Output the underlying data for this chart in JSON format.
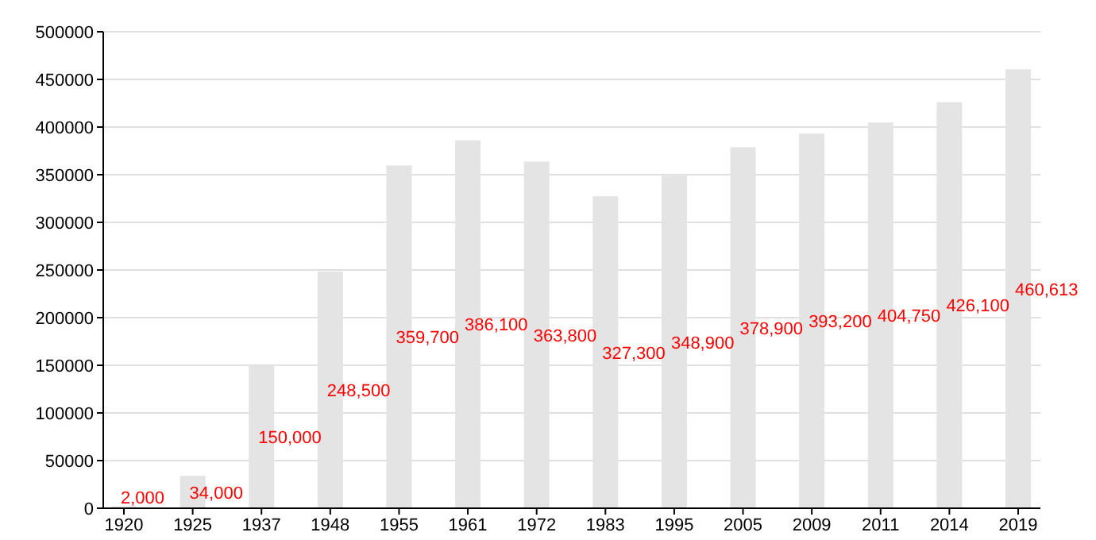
{
  "chart_data": {
    "type": "bar",
    "categories": [
      "1920",
      "1925",
      "1937",
      "1948",
      "1955",
      "1961",
      "1972",
      "1983",
      "1995",
      "2005",
      "2009",
      "2011",
      "2014",
      "2019"
    ],
    "series": [
      {
        "color": "#e4e4e4",
        "values": [
          2000,
          34000,
          150000,
          248500,
          359700,
          386100,
          363800,
          327300,
          348900,
          378900,
          393200,
          404750,
          426100,
          460613
        ],
        "value_labels": [
          "2,000",
          "34,000",
          "150,000",
          "248,500",
          "359,700",
          "386,100",
          "363,800",
          "327,300",
          "348,900",
          "378,900",
          "393,200",
          "404,750",
          "426,100",
          "460,613"
        ]
      }
    ],
    "ylim": [
      0,
      500000
    ],
    "yticks": [
      0,
      50000,
      100000,
      150000,
      200000,
      250000,
      300000,
      350000,
      400000,
      450000,
      500000
    ],
    "grid": "y"
  }
}
